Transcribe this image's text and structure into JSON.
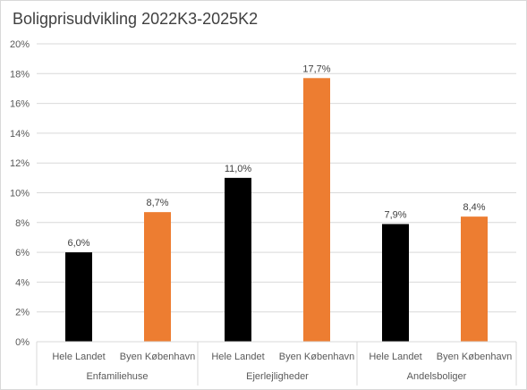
{
  "chart_data": {
    "type": "bar",
    "title": "Boligprisudvikling 2022K3-2025K2",
    "xlabel": "",
    "ylabel": "",
    "ylim": [
      0,
      20
    ],
    "y_ticks": [
      "0%",
      "2%",
      "4%",
      "6%",
      "8%",
      "10%",
      "12%",
      "14%",
      "16%",
      "18%",
      "20%"
    ],
    "grid": true,
    "legend": "none",
    "groups": [
      "Enfamiliehuse",
      "Ejerlejligheder",
      "Andelsboliger"
    ],
    "categories": [
      "Hele Landet",
      "Byen København"
    ],
    "series_colors": [
      "#000000",
      "#ED7D31"
    ],
    "bars": [
      {
        "group": "Enfamiliehuse",
        "category": "Hele Landet",
        "value": 6.0,
        "label": "6,0%"
      },
      {
        "group": "Enfamiliehuse",
        "category": "Byen København",
        "value": 8.7,
        "label": "8,7%"
      },
      {
        "group": "Ejerlejligheder",
        "category": "Hele Landet",
        "value": 11.0,
        "label": "11,0%"
      },
      {
        "group": "Ejerlejligheder",
        "category": "Byen København",
        "value": 17.7,
        "label": "17,7%"
      },
      {
        "group": "Andelsboliger",
        "category": "Hele Landet",
        "value": 7.9,
        "label": "7,9%"
      },
      {
        "group": "Andelsboliger",
        "category": "Byen København",
        "value": 8.4,
        "label": "8,4%"
      }
    ]
  }
}
